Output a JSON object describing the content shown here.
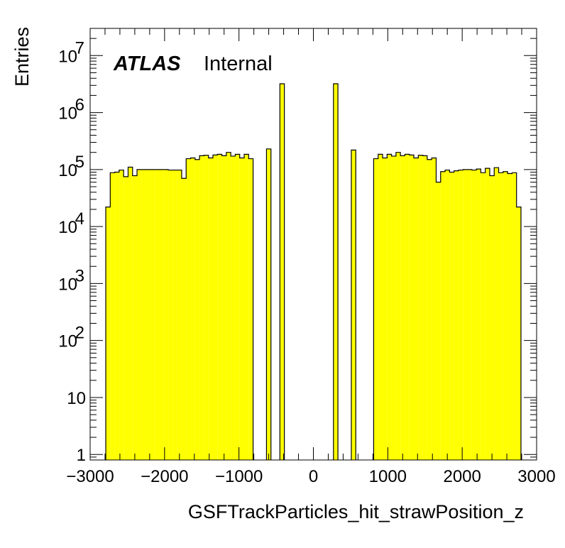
{
  "chart_data": {
    "type": "bar",
    "title": "",
    "xlabel": "GSFTrackParticles_hit_strawPosition_z",
    "ylabel": "Entries",
    "xlim": [
      -3000,
      3000
    ],
    "ylim": [
      0.8,
      30000000
    ],
    "yscale": "log",
    "bin_width": 60,
    "fill_color": "#ffff00",
    "line_color": "#000000",
    "annotation": {
      "atlas": "ATLAS",
      "status": "Internal"
    },
    "x_ticks": [
      {
        "value": -3000,
        "label": "−3000"
      },
      {
        "value": -2000,
        "label": "−2000"
      },
      {
        "value": -1000,
        "label": "−1000"
      },
      {
        "value": 0,
        "label": "0"
      },
      {
        "value": 1000,
        "label": "1000"
      },
      {
        "value": 2000,
        "label": "2000"
      },
      {
        "value": 3000,
        "label": "3000"
      }
    ],
    "y_ticks": [
      {
        "value": 1,
        "base": "1",
        "exp": ""
      },
      {
        "value": 10,
        "base": "10",
        "exp": ""
      },
      {
        "value": 100,
        "base": "10",
        "exp": "2"
      },
      {
        "value": 1000,
        "base": "10",
        "exp": "3"
      },
      {
        "value": 10000,
        "base": "10",
        "exp": "4"
      },
      {
        "value": 100000,
        "base": "10",
        "exp": "5"
      },
      {
        "value": 1000000,
        "base": "10",
        "exp": "6"
      },
      {
        "value": 10000000,
        "base": "10",
        "exp": "7"
      }
    ],
    "bins": [
      {
        "x": -2760,
        "y": 22000
      },
      {
        "x": -2700,
        "y": 88000
      },
      {
        "x": -2640,
        "y": 90000
      },
      {
        "x": -2580,
        "y": 98000
      },
      {
        "x": -2520,
        "y": 75000
      },
      {
        "x": -2460,
        "y": 110000
      },
      {
        "x": -2400,
        "y": 78000
      },
      {
        "x": -2340,
        "y": 100000
      },
      {
        "x": -2280,
        "y": 100000
      },
      {
        "x": -2220,
        "y": 100000
      },
      {
        "x": -2160,
        "y": 100000
      },
      {
        "x": -2100,
        "y": 100000
      },
      {
        "x": -2040,
        "y": 100000
      },
      {
        "x": -1980,
        "y": 100000
      },
      {
        "x": -1920,
        "y": 98000
      },
      {
        "x": -1860,
        "y": 98000
      },
      {
        "x": -1800,
        "y": 98000
      },
      {
        "x": -1740,
        "y": 70000
      },
      {
        "x": -1680,
        "y": 155000
      },
      {
        "x": -1620,
        "y": 160000
      },
      {
        "x": -1560,
        "y": 150000
      },
      {
        "x": -1500,
        "y": 175000
      },
      {
        "x": -1440,
        "y": 178000
      },
      {
        "x": -1380,
        "y": 160000
      },
      {
        "x": -1320,
        "y": 180000
      },
      {
        "x": -1260,
        "y": 185000
      },
      {
        "x": -1200,
        "y": 175000
      },
      {
        "x": -1140,
        "y": 200000
      },
      {
        "x": -1080,
        "y": 172000
      },
      {
        "x": -1020,
        "y": 185000
      },
      {
        "x": -960,
        "y": 160000
      },
      {
        "x": -900,
        "y": 185000
      },
      {
        "x": -840,
        "y": 155000
      },
      {
        "x": -600,
        "y": 230000
      },
      {
        "x": -420,
        "y": 3200000
      },
      {
        "x": 300,
        "y": 3200000
      },
      {
        "x": 540,
        "y": 220000
      },
      {
        "x": 840,
        "y": 155000
      },
      {
        "x": 900,
        "y": 185000
      },
      {
        "x": 960,
        "y": 160000
      },
      {
        "x": 1020,
        "y": 185000
      },
      {
        "x": 1080,
        "y": 172000
      },
      {
        "x": 1140,
        "y": 200000
      },
      {
        "x": 1200,
        "y": 175000
      },
      {
        "x": 1260,
        "y": 185000
      },
      {
        "x": 1320,
        "y": 180000
      },
      {
        "x": 1380,
        "y": 160000
      },
      {
        "x": 1440,
        "y": 178000
      },
      {
        "x": 1500,
        "y": 175000
      },
      {
        "x": 1560,
        "y": 150000
      },
      {
        "x": 1620,
        "y": 160000
      },
      {
        "x": 1680,
        "y": 60000
      },
      {
        "x": 1740,
        "y": 92000
      },
      {
        "x": 1800,
        "y": 98000
      },
      {
        "x": 1860,
        "y": 90000
      },
      {
        "x": 1920,
        "y": 95000
      },
      {
        "x": 1980,
        "y": 98000
      },
      {
        "x": 2040,
        "y": 100000
      },
      {
        "x": 2100,
        "y": 100000
      },
      {
        "x": 2160,
        "y": 98000
      },
      {
        "x": 2220,
        "y": 102000
      },
      {
        "x": 2280,
        "y": 88000
      },
      {
        "x": 2340,
        "y": 105000
      },
      {
        "x": 2400,
        "y": 78000
      },
      {
        "x": 2460,
        "y": 108000
      },
      {
        "x": 2520,
        "y": 88000
      },
      {
        "x": 2580,
        "y": 92000
      },
      {
        "x": 2640,
        "y": 85000
      },
      {
        "x": 2700,
        "y": 88000
      },
      {
        "x": 2760,
        "y": 22000
      }
    ]
  }
}
